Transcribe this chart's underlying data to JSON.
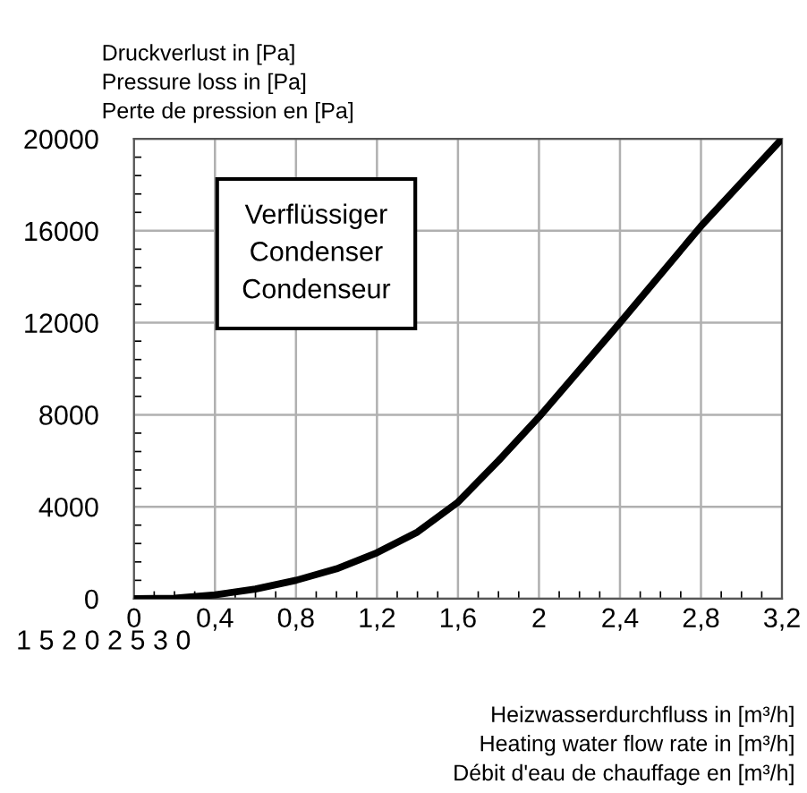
{
  "chart_data": {
    "type": "line",
    "ylabel": "Druckverlust in [Pa]\nPressure loss in [Pa]\nPerte de pression en [Pa]",
    "xlabel": "Heizwasserdurchfluss in [m³/h]\nHeating water flow rate in [m³/h]\nDébit d'eau de chauffage en [m³/h]",
    "x": [
      0,
      0.2,
      0.4,
      0.6,
      0.8,
      1.0,
      1.2,
      1.4,
      1.6,
      1.8,
      2.0,
      2.4,
      2.8,
      3.2
    ],
    "series": [
      {
        "color": "#000000",
        "values": [
          0,
          20,
          170,
          420,
          800,
          1300,
          2000,
          2900,
          4200,
          6000,
          7900,
          12000,
          16200,
          20000
        ]
      }
    ],
    "xlim": [
      0,
      3.2
    ],
    "xticks": [
      0,
      {
        "value": 0.4,
        "label": "0,4"
      },
      {
        "value": 0.8,
        "label": "0,8"
      },
      {
        "value": 1.2,
        "label": "1,2"
      },
      {
        "value": 1.6,
        "label": "1,6"
      },
      2,
      {
        "value": 2.4,
        "label": "2,4"
      },
      {
        "value": 2.8,
        "label": "2,8"
      },
      {
        "value": 3.2,
        "label": "3,2"
      }
    ],
    "ylim": [
      0,
      20000
    ],
    "yticks": [
      0,
      4000,
      8000,
      12000,
      16000,
      20000
    ],
    "grid": true,
    "marker": "none",
    "line_style": "solid",
    "annotations": [
      "Verflüssiger\nCondenser\nCondenseur",
      "1 5 2 0 2 5 3 0"
    ]
  }
}
